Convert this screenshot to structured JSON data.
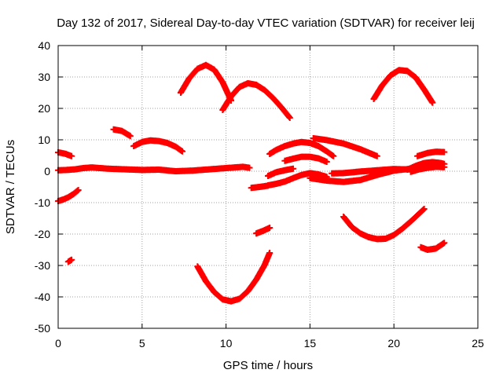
{
  "chart_data": {
    "type": "scatter",
    "title": "Day 132 of 2017, Sidereal Day-to-day VTEC variation (SDTVAR) for receiver leij",
    "xlabel": "GPS time / hours",
    "ylabel": "SDTVAR / TECUs",
    "xlim": [
      0,
      25
    ],
    "ylim": [
      -50,
      40
    ],
    "xticks": [
      "0",
      "5",
      "10",
      "15",
      "20",
      "25"
    ],
    "yticks": [
      "-50",
      "-40",
      "-30",
      "-20",
      "-10",
      "0",
      "10",
      "20",
      "30",
      "40"
    ],
    "grid": true,
    "legend": "none",
    "marker": "plus",
    "color": "#ff0000",
    "series": [
      {
        "x": [
          0.0,
          0.5,
          1.0,
          1.5,
          2.0,
          3.0,
          4.0,
          5.0,
          6.0,
          7.0,
          8.0,
          9.0,
          10.0,
          11.0,
          11.4
        ],
        "y": [
          0.3,
          0.4,
          0.6,
          1.0,
          1.2,
          0.8,
          0.6,
          0.4,
          0.5,
          0.0,
          0.2,
          0.6,
          1.0,
          1.4,
          1.1
        ]
      },
      {
        "x": [
          0.0,
          0.4,
          0.8
        ],
        "y": [
          6.0,
          5.6,
          4.8
        ]
      },
      {
        "x": [
          0.0,
          0.3,
          0.6,
          0.9,
          1.2
        ],
        "y": [
          -9.5,
          -9.0,
          -8.3,
          -7.3,
          -6.0
        ]
      },
      {
        "x": [
          0.6,
          0.8
        ],
        "y": [
          -28.8,
          -28.2
        ]
      },
      {
        "x": [
          3.3,
          3.8,
          4.3
        ],
        "y": [
          13.3,
          12.8,
          11.2
        ]
      },
      {
        "x": [
          4.5,
          5.0,
          5.5,
          6.0,
          6.5,
          7.0,
          7.4
        ],
        "y": [
          8.0,
          9.3,
          9.8,
          9.6,
          9.0,
          7.8,
          6.3
        ]
      },
      {
        "x": [
          7.3,
          7.8,
          8.3,
          8.8,
          9.3,
          9.8,
          10.3
        ],
        "y": [
          25.0,
          29.5,
          32.6,
          33.8,
          32.3,
          28.3,
          22.5
        ]
      },
      {
        "x": [
          9.8,
          10.3,
          10.8,
          11.3,
          11.8,
          12.3,
          12.8,
          13.3,
          13.8
        ],
        "y": [
          19.5,
          23.8,
          26.8,
          28.0,
          27.5,
          25.8,
          23.3,
          20.3,
          17.0
        ]
      },
      {
        "x": [
          8.3,
          8.8,
          9.3,
          9.8,
          10.3,
          10.8,
          11.3,
          11.8,
          12.3,
          12.6
        ],
        "y": [
          -30.3,
          -35.0,
          -38.5,
          -40.8,
          -41.4,
          -40.6,
          -38.2,
          -34.5,
          -29.8,
          -26.0
        ]
      },
      {
        "x": [
          11.5,
          12.0,
          12.5
        ],
        "y": [
          -5.3,
          -5.0,
          -4.6
        ]
      },
      {
        "x": [
          11.8,
          12.2,
          12.6
        ],
        "y": [
          -19.8,
          -19.0,
          -18.0
        ]
      },
      {
        "x": [
          12.6,
          13.0,
          13.5,
          14.0,
          14.5,
          15.0,
          15.5,
          16.0,
          16.4
        ],
        "y": [
          5.5,
          6.8,
          8.0,
          8.8,
          9.3,
          9.0,
          8.0,
          6.3,
          4.8
        ]
      },
      {
        "x": [
          12.5,
          13.0,
          13.5,
          14.0
        ],
        "y": [
          -1.5,
          -0.3,
          0.3,
          0.8
        ]
      },
      {
        "x": [
          12.5,
          13.0,
          13.5,
          14.0,
          14.5,
          15.0,
          15.5,
          16.0
        ],
        "y": [
          -4.5,
          -4.0,
          -3.3,
          -2.2,
          -1.2,
          -0.6,
          -1.0,
          -1.8
        ]
      },
      {
        "x": [
          13.5,
          14.0,
          14.5,
          15.0,
          15.5,
          16.0
        ],
        "y": [
          3.3,
          4.0,
          4.6,
          4.6,
          4.1,
          3.0
        ]
      },
      {
        "x": [
          15.2,
          16.0,
          17.0,
          18.0,
          19.0
        ],
        "y": [
          10.5,
          9.9,
          8.8,
          7.0,
          4.8
        ]
      },
      {
        "x": [
          15.0,
          16.0,
          17.0,
          18.0,
          19.0,
          20.0,
          21.0
        ],
        "y": [
          -2.2,
          -3.0,
          -3.4,
          -2.8,
          -1.2,
          0.2,
          0.8
        ]
      },
      {
        "x": [
          16.3,
          17.0,
          18.0,
          19.0,
          20.0,
          20.7
        ],
        "y": [
          -0.7,
          -0.6,
          -0.1,
          0.3,
          0.7,
          0.6
        ]
      },
      {
        "x": [
          17.0,
          17.5,
          18.0,
          18.5,
          19.0,
          19.5,
          20.0,
          20.5,
          21.0,
          21.5,
          21.8
        ],
        "y": [
          -14.5,
          -17.8,
          -19.8,
          -21.0,
          -21.6,
          -21.5,
          -20.3,
          -18.3,
          -16.0,
          -13.5,
          -12.0
        ]
      },
      {
        "x": [
          18.8,
          19.3,
          19.8,
          20.3,
          20.8,
          21.3,
          21.8,
          22.3
        ],
        "y": [
          23.0,
          27.3,
          30.5,
          32.2,
          31.9,
          29.8,
          26.0,
          21.8
        ]
      },
      {
        "x": [
          21.4,
          22.0,
          22.5,
          23.0
        ],
        "y": [
          4.8,
          5.8,
          6.2,
          6.1
        ]
      },
      {
        "x": [
          20.8,
          21.3,
          21.8,
          22.3,
          22.8,
          23.0
        ],
        "y": [
          0.5,
          1.7,
          2.6,
          2.9,
          2.6,
          2.3
        ]
      },
      {
        "x": [
          21.0,
          21.5,
          22.0,
          22.5,
          23.0
        ],
        "y": [
          -0.2,
          0.6,
          1.1,
          1.4,
          1.3
        ]
      },
      {
        "x": [
          21.6,
          22.0,
          22.5,
          23.0
        ],
        "y": [
          -24.2,
          -25.0,
          -24.6,
          -22.8
        ]
      }
    ]
  }
}
